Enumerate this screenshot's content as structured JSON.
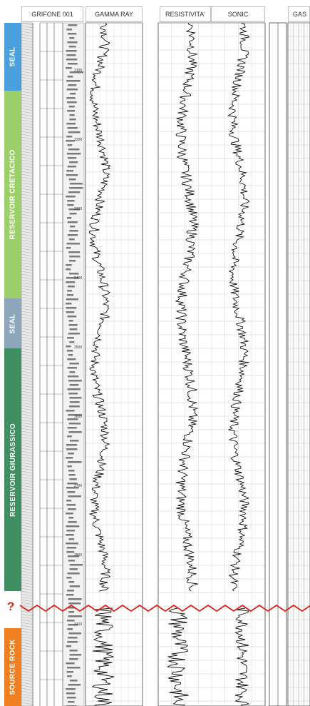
{
  "headers": {
    "well": "GRIFONE 001",
    "gamma_ray": "GAMMA RAY",
    "resistivity": "RESISTIVITA'",
    "sonic": "SONIC",
    "gas": "GAS"
  },
  "zones": [
    {
      "label": "SEAL",
      "color": "#4aa0dc"
    },
    {
      "label": "RESERVOIR CRETACICO",
      "color": "#9ccf6a"
    },
    {
      "label": "SEAL",
      "color": "#8ea6bc"
    },
    {
      "label": "RESERVOIR GIURASSICO",
      "color": "#3f8f63"
    },
    {
      "label": "SOURCE ROCK",
      "color": "#f07f22"
    }
  ],
  "unconformity": {
    "label": "?",
    "color": "#d9261c"
  },
  "depth_marks": [
    "2100",
    "2200",
    "2300",
    "2400",
    "2500",
    "2600",
    "2700",
    "2800",
    "3100"
  ]
}
